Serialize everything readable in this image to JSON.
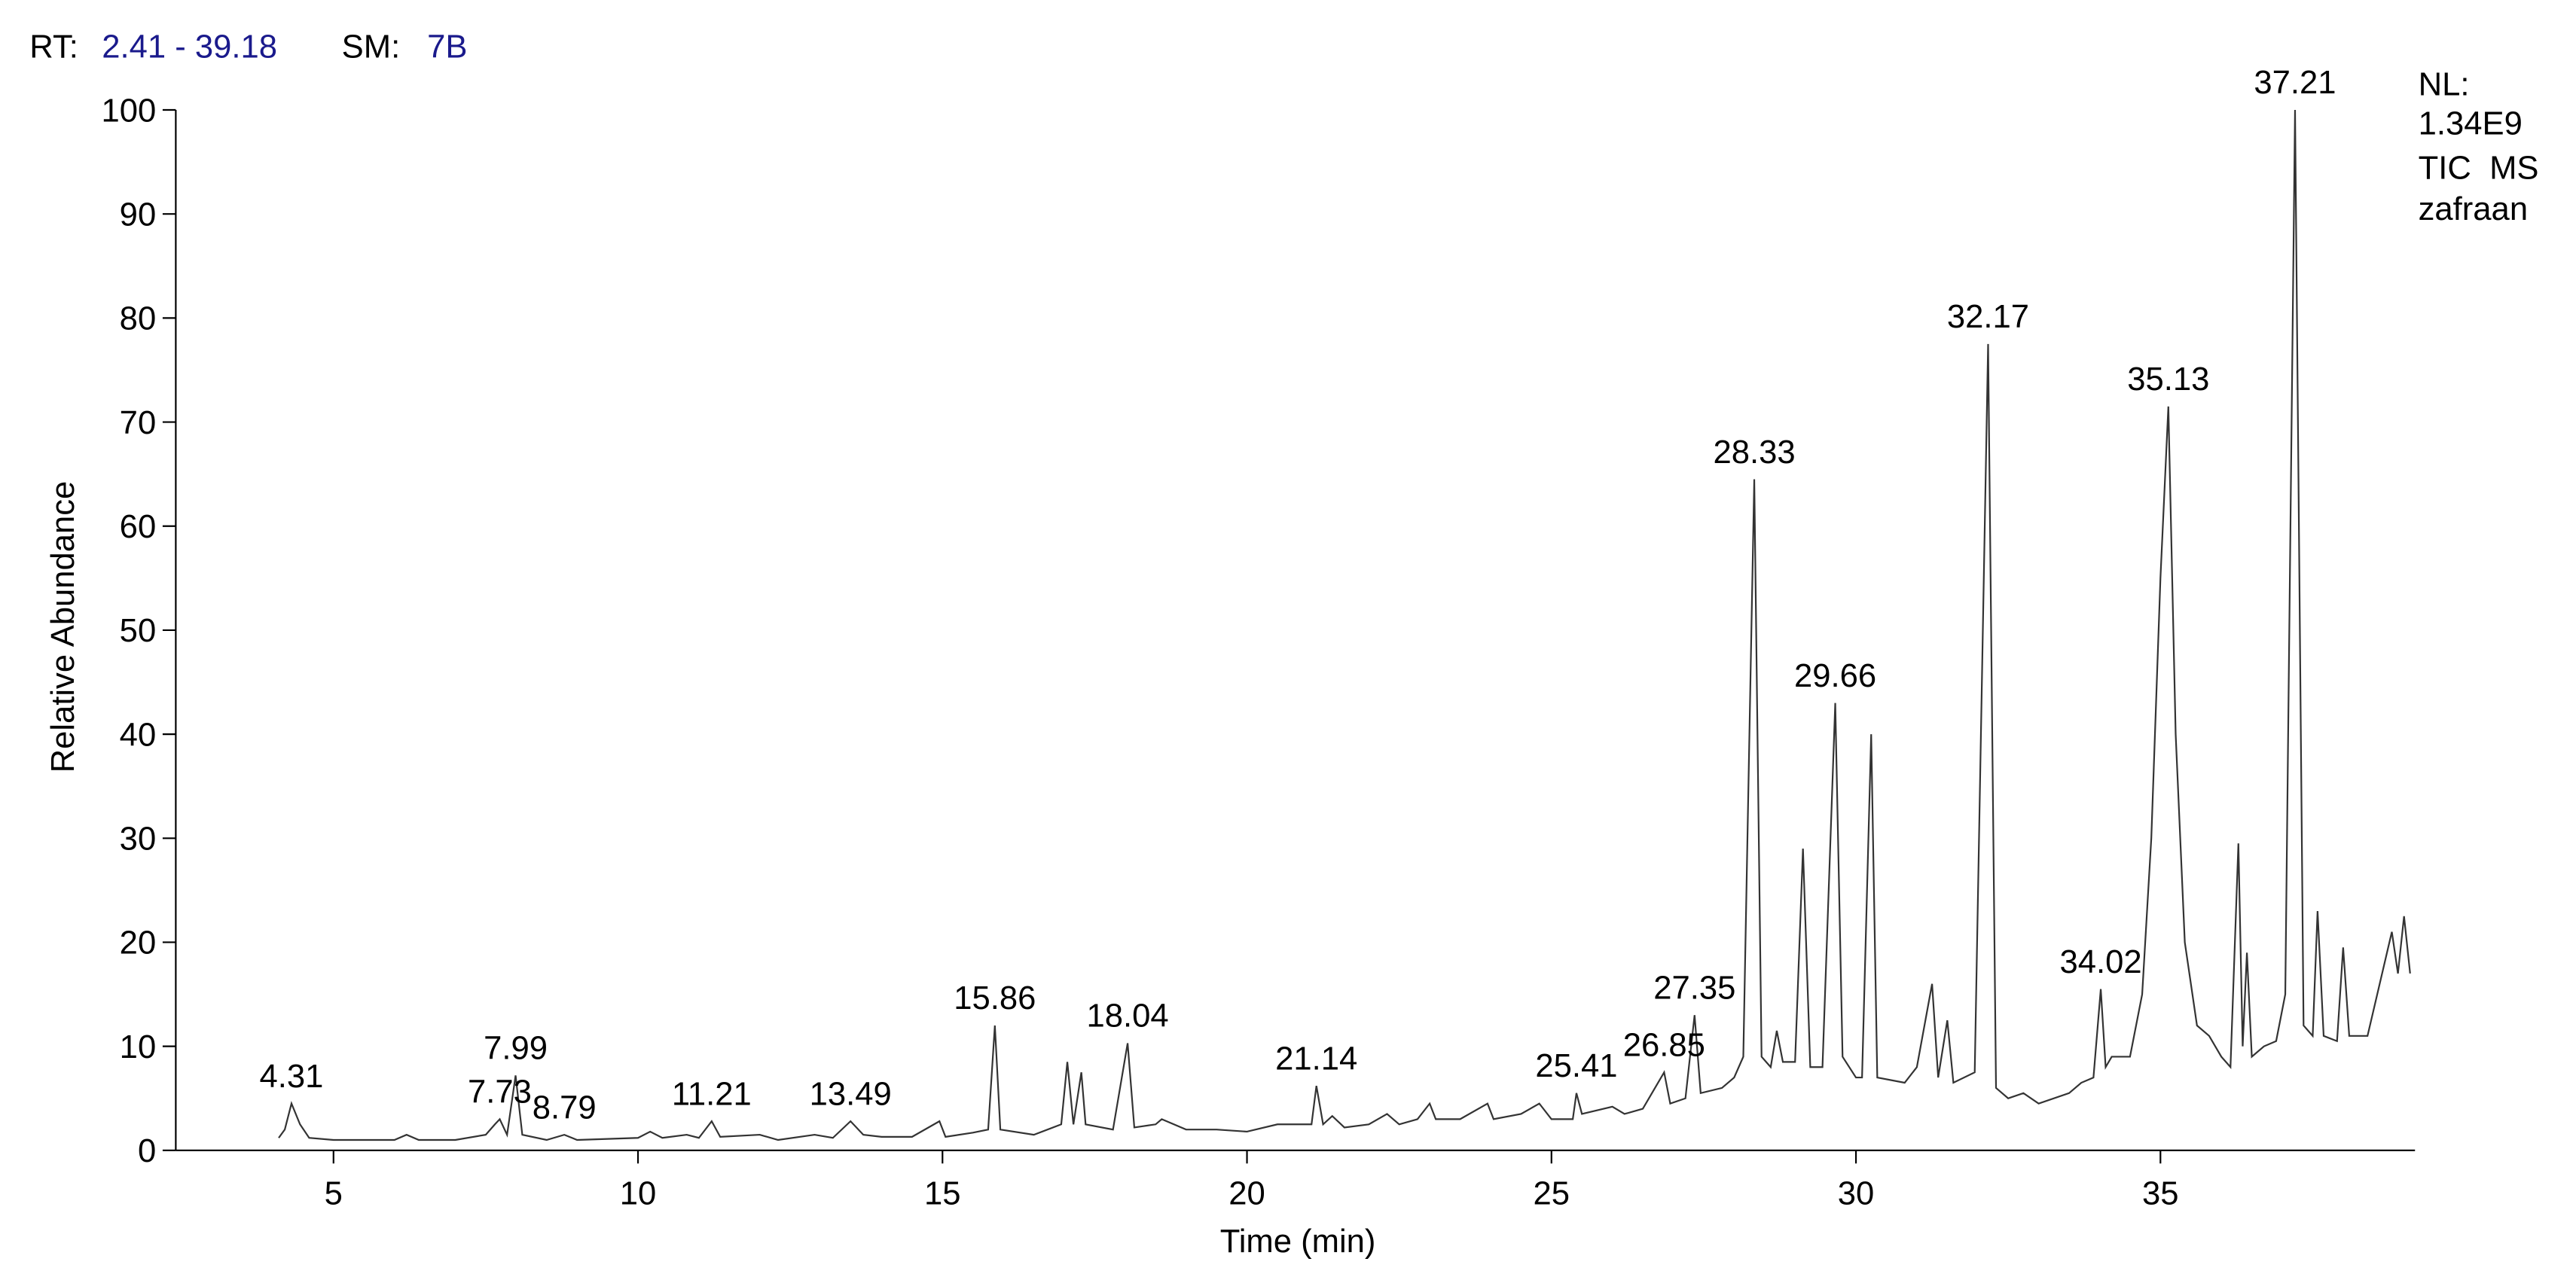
{
  "header": {
    "rt_label": "RT:",
    "rt_range": "2.41 - 39.18",
    "sm_label": "SM:",
    "sm_value": "7B"
  },
  "info": {
    "nl_label": "NL:",
    "nl_value": "1.34E9",
    "scan": "TIC  MS",
    "sample": "zafraan"
  },
  "chart_data": {
    "type": "line",
    "color": "#333333",
    "x_label": "Time (min)",
    "y_label": "Relative Abundance",
    "xlim": [
      2.41,
      39.18
    ],
    "ylim": [
      0,
      100
    ],
    "xticks": [
      5,
      10,
      15,
      20,
      25,
      30,
      35
    ],
    "yticks": [
      0,
      10,
      20,
      30,
      40,
      50,
      60,
      70,
      80,
      90,
      100
    ],
    "x": [
      4.1,
      4.2,
      4.31,
      4.45,
      4.6,
      5,
      6,
      6.2,
      6.4,
      7,
      7.5,
      7.65,
      7.73,
      7.85,
      7.99,
      8.1,
      8.5,
      8.79,
      9,
      10,
      10.2,
      10.4,
      10.8,
      11,
      11.21,
      11.35,
      12,
      12.3,
      12.9,
      13.2,
      13.49,
      13.7,
      14,
      14.5,
      14.95,
      15.05,
      15.5,
      15.75,
      15.86,
      15.95,
      16.5,
      16.95,
      17.05,
      17.15,
      17.28,
      17.35,
      17.8,
      18.04,
      18.15,
      18.5,
      18.6,
      19,
      19.5,
      20,
      20.5,
      20.8,
      21.06,
      21.14,
      21.25,
      21.4,
      21.6,
      22,
      22.3,
      22.5,
      22.8,
      23,
      23.1,
      23.5,
      23.95,
      24.05,
      24.5,
      24.8,
      25,
      25.35,
      25.41,
      25.5,
      26,
      26.2,
      26.5,
      26.85,
      26.95,
      27.2,
      27.35,
      27.45,
      27.8,
      28,
      28.15,
      28.33,
      28.45,
      28.6,
      28.7,
      28.8,
      29,
      29.13,
      29.25,
      29.45,
      29.66,
      29.78,
      30,
      30.1,
      30.25,
      30.35,
      30.8,
      31,
      31.25,
      31.35,
      31.5,
      31.6,
      31.95,
      32.17,
      32.3,
      32.5,
      32.75,
      33,
      33.5,
      33.7,
      33.9,
      34.02,
      34.1,
      34.2,
      34.5,
      34.7,
      34.85,
      35,
      35.13,
      35.25,
      35.4,
      35.6,
      35.8,
      36,
      36.15,
      36.28,
      36.35,
      36.42,
      36.5,
      36.7,
      36.9,
      37.05,
      37.21,
      37.35,
      37.5,
      37.58,
      37.68,
      37.9,
      38,
      38.1,
      38.4,
      38.6,
      38.8,
      38.9,
      39,
      39.1
    ],
    "values": [
      1.2,
      2,
      4.5,
      2.5,
      1.2,
      1,
      1,
      1.5,
      1,
      1,
      1.5,
      2.5,
      3,
      1.5,
      7.2,
      1.5,
      1,
      1.5,
      1,
      1.2,
      1.8,
      1.2,
      1.5,
      1.2,
      2.8,
      1.3,
      1.5,
      1,
      1.5,
      1.2,
      2.8,
      1.5,
      1.3,
      1.3,
      2.8,
      1.3,
      1.7,
      2,
      12,
      2,
      1.5,
      2.5,
      8.5,
      2.5,
      7.5,
      2.5,
      2,
      10.3,
      2.2,
      2.5,
      3,
      2,
      2,
      1.8,
      2.5,
      2.5,
      2.5,
      6.2,
      2.5,
      3.3,
      2.2,
      2.5,
      3.5,
      2.5,
      3,
      4.5,
      3,
      3,
      4.5,
      3,
      3.5,
      4.5,
      3,
      3,
      5.5,
      3.5,
      4.2,
      3.5,
      4,
      7.5,
      4.5,
      5,
      13,
      5.5,
      6,
      7,
      9,
      64.5,
      9,
      8,
      11.5,
      8.5,
      8.5,
      29,
      8,
      8,
      43,
      9,
      7,
      7,
      40,
      7,
      6.5,
      8,
      16,
      7,
      12.5,
      6.5,
      7.5,
      77.5,
      6,
      5,
      5.5,
      4.5,
      5.5,
      6.5,
      7,
      15.5,
      8,
      9,
      9,
      15,
      30,
      55,
      71.5,
      40,
      20,
      12,
      11,
      9,
      8,
      29.5,
      10,
      19,
      9,
      10,
      10.5,
      15,
      100,
      12,
      11,
      23,
      11,
      10.5,
      19.5,
      11,
      11,
      16,
      21,
      17,
      22.5,
      17
    ],
    "peak_labels": [
      {
        "rt": 4.31,
        "height": 4.5
      },
      {
        "rt": 7.73,
        "height": 3
      },
      {
        "rt": 7.99,
        "height": 7.2
      },
      {
        "rt": 8.79,
        "height": 1.5
      },
      {
        "rt": 11.21,
        "height": 2.8
      },
      {
        "rt": 13.49,
        "height": 2.8
      },
      {
        "rt": 15.86,
        "height": 12
      },
      {
        "rt": 18.04,
        "height": 10.3
      },
      {
        "rt": 21.14,
        "height": 6.2
      },
      {
        "rt": 25.41,
        "height": 5.5
      },
      {
        "rt": 26.85,
        "height": 7.5
      },
      {
        "rt": 27.35,
        "height": 13
      },
      {
        "rt": 28.33,
        "height": 64.5
      },
      {
        "rt": 29.66,
        "height": 43
      },
      {
        "rt": 32.17,
        "height": 77.5
      },
      {
        "rt": 34.02,
        "height": 15.5
      },
      {
        "rt": 35.13,
        "height": 71.5
      },
      {
        "rt": 37.21,
        "height": 100
      }
    ]
  }
}
